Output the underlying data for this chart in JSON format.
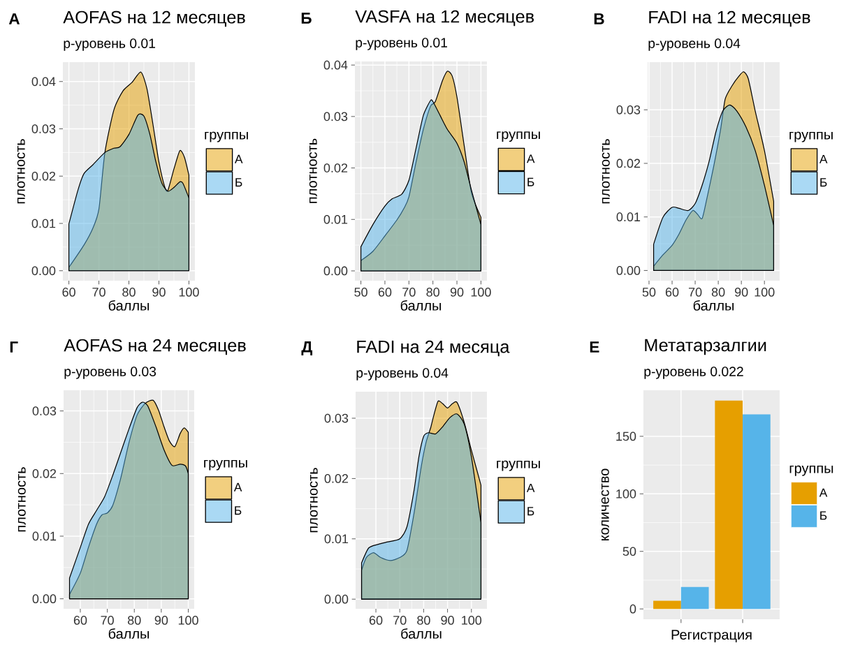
{
  "chart_data": [
    {
      "type": "area",
      "title": "AOFAS на 12 месяцев",
      "subtitle": "p-уровень 0.01",
      "annotations": [
        "А"
      ],
      "xlabel": "баллы",
      "ylabel": "плотность",
      "legend_title": "группы",
      "legend": "right",
      "grid": true,
      "xlim": [
        58,
        102
      ],
      "ylim": [
        -0.0021,
        0.0441
      ],
      "xticks": [
        60,
        70,
        80,
        90,
        100
      ],
      "yticks": [
        {
          "value": 0,
          "label": "0.00"
        },
        {
          "value": 0.01,
          "label": "0.01"
        },
        {
          "value": 0.02,
          "label": "0.02"
        },
        {
          "value": 0.03,
          "label": "0.03"
        },
        {
          "value": 0.04,
          "label": "0.04"
        }
      ],
      "series": [
        {
          "name": "А",
          "color": "#e69f00",
          "x": [
            60,
            65,
            68,
            70,
            72,
            75,
            78,
            81,
            84,
            86,
            88,
            90,
            92,
            93,
            95,
            97,
            98.5,
            100
          ],
          "values": [
            0.0007,
            0.0054,
            0.009,
            0.013,
            0.025,
            0.034,
            0.038,
            0.0398,
            0.042,
            0.0385,
            0.031,
            0.023,
            0.0176,
            0.017,
            0.0215,
            0.0254,
            0.024,
            0.0202
          ]
        },
        {
          "name": "Б",
          "color": "#56b4e9",
          "x": [
            60,
            63,
            65,
            68,
            72,
            75,
            77,
            80,
            83,
            85,
            87,
            89,
            91,
            93,
            95,
            97,
            98,
            100
          ],
          "values": [
            0.0099,
            0.017,
            0.0205,
            0.0224,
            0.025,
            0.0259,
            0.0262,
            0.0288,
            0.0329,
            0.0327,
            0.0288,
            0.023,
            0.0185,
            0.0168,
            0.0176,
            0.0188,
            0.0185,
            0.0154
          ]
        }
      ]
    },
    {
      "type": "area",
      "title": "VASFA на 12 месяцев",
      "subtitle": "p-уровень 0.01",
      "annotations": [
        "Б"
      ],
      "xlabel": "баллы",
      "ylabel": "плотность",
      "legend_title": "группы",
      "legend": "right",
      "grid": true,
      "xlim": [
        47.5,
        102.5
      ],
      "ylim": [
        -0.0019,
        0.0407
      ],
      "xticks": [
        50,
        60,
        70,
        80,
        90,
        100
      ],
      "yticks": [
        {
          "value": 0,
          "label": "0.00"
        },
        {
          "value": 0.01,
          "label": "0.01"
        },
        {
          "value": 0.02,
          "label": "0.02"
        },
        {
          "value": 0.03,
          "label": "0.03"
        },
        {
          "value": 0.04,
          "label": "0.04"
        }
      ],
      "series": [
        {
          "name": "А",
          "color": "#e69f00",
          "x": [
            50,
            55,
            60,
            65,
            68,
            70,
            73,
            76,
            79,
            81,
            84,
            86,
            88,
            90,
            93,
            96,
            100
          ],
          "values": [
            0.002,
            0.0038,
            0.0068,
            0.0099,
            0.0122,
            0.0144,
            0.0212,
            0.0275,
            0.032,
            0.0329,
            0.037,
            0.0388,
            0.0379,
            0.0338,
            0.0244,
            0.0153,
            0.0104
          ]
        },
        {
          "name": "Б",
          "color": "#56b4e9",
          "x": [
            50,
            55,
            60,
            63,
            67,
            70,
            73,
            76,
            79,
            80,
            83,
            86,
            90,
            93,
            96,
            100
          ],
          "values": [
            0.0047,
            0.009,
            0.0126,
            0.014,
            0.0149,
            0.0176,
            0.0239,
            0.0302,
            0.0331,
            0.0329,
            0.0302,
            0.0275,
            0.0248,
            0.0212,
            0.0158,
            0.009
          ]
        }
      ]
    },
    {
      "type": "area",
      "title": "FADI на 12 месяцев",
      "subtitle": "p-уровень 0.04",
      "annotations": [
        "В"
      ],
      "xlabel": "баллы",
      "ylabel": "плотность",
      "legend_title": "группы",
      "legend": "right",
      "grid": true,
      "xlim": [
        49.4,
        106.6
      ],
      "ylim": [
        -0.0019,
        0.0389
      ],
      "xticks": [
        50,
        60,
        70,
        80,
        90,
        100
      ],
      "yticks": [
        {
          "value": 0,
          "label": "0.00"
        },
        {
          "value": 0.01,
          "label": "0.01"
        },
        {
          "value": 0.02,
          "label": "0.02"
        },
        {
          "value": 0.03,
          "label": "0.03"
        }
      ],
      "series": [
        {
          "name": "А",
          "color": "#e69f00",
          "x": [
            52,
            56,
            60,
            63,
            66,
            69,
            71,
            73,
            75,
            78,
            81,
            83,
            86,
            89,
            91,
            93,
            96,
            100,
            104
          ],
          "values": [
            0.0008,
            0.0029,
            0.0047,
            0.0068,
            0.0094,
            0.0112,
            0.0105,
            0.0097,
            0.0133,
            0.0194,
            0.0263,
            0.032,
            0.0345,
            0.0363,
            0.0371,
            0.0358,
            0.0298,
            0.0224,
            0.0129
          ]
        },
        {
          "name": "Б",
          "color": "#56b4e9",
          "x": [
            52,
            56,
            60,
            63,
            67,
            70,
            73,
            76,
            79,
            82,
            85,
            88,
            92,
            96,
            100,
            104
          ],
          "values": [
            0.0049,
            0.0099,
            0.0118,
            0.0116,
            0.0112,
            0.0125,
            0.0159,
            0.0203,
            0.0259,
            0.0298,
            0.0309,
            0.0298,
            0.0268,
            0.0224,
            0.0159,
            0.0084
          ]
        }
      ]
    },
    {
      "type": "area",
      "title": "AOFAS на 24 месяцев",
      "subtitle": "p-уровень 0.03",
      "annotations": [
        "Г"
      ],
      "xlabel": "баллы",
      "ylabel": "плотность",
      "legend_title": "группы",
      "legend": "right",
      "grid": true,
      "xlim": [
        53.8,
        102.2
      ],
      "ylim": [
        -0.0016,
        0.0333
      ],
      "xticks": [
        60,
        70,
        80,
        90,
        100
      ],
      "yticks": [
        {
          "value": 0,
          "label": "0.00"
        },
        {
          "value": 0.01,
          "label": "0.01"
        },
        {
          "value": 0.02,
          "label": "0.02"
        },
        {
          "value": 0.03,
          "label": "0.03"
        }
      ],
      "series": [
        {
          "name": "А",
          "color": "#e69f00",
          "x": [
            56,
            60,
            63,
            66,
            68,
            70,
            72,
            75,
            78,
            81,
            84,
            87,
            89,
            91,
            93,
            95,
            97,
            98.5,
            100
          ],
          "values": [
            0.0007,
            0.0041,
            0.0082,
            0.0119,
            0.0134,
            0.0137,
            0.0149,
            0.0193,
            0.0249,
            0.0293,
            0.0312,
            0.0317,
            0.0301,
            0.0275,
            0.0252,
            0.0243,
            0.0264,
            0.0273,
            0.0266
          ]
        },
        {
          "name": "Б",
          "color": "#56b4e9",
          "x": [
            56,
            60,
            63,
            66,
            69,
            72,
            75,
            78,
            81,
            83,
            85,
            88,
            91,
            94,
            97,
            99,
            100
          ],
          "values": [
            0.0033,
            0.0082,
            0.0119,
            0.0141,
            0.0163,
            0.0197,
            0.0234,
            0.0271,
            0.0305,
            0.0314,
            0.0308,
            0.0275,
            0.0238,
            0.0213,
            0.0215,
            0.0212,
            0.02
          ]
        }
      ]
    },
    {
      "type": "area",
      "title": "FADI на 24 месяца",
      "subtitle": "p-уровень 0.04",
      "annotations": [
        "Д"
      ],
      "xlabel": "баллы",
      "ylabel": "плотность",
      "legend_title": "группы",
      "legend": "right",
      "grid": true,
      "xlim": [
        51.5,
        106.5
      ],
      "ylim": [
        -0.0016,
        0.0344
      ],
      "xticks": [
        60,
        70,
        80,
        90,
        100
      ],
      "yticks": [
        {
          "value": 0,
          "label": "0.00"
        },
        {
          "value": 0.01,
          "label": "0.01"
        },
        {
          "value": 0.02,
          "label": "0.02"
        },
        {
          "value": 0.03,
          "label": "0.03"
        }
      ],
      "series": [
        {
          "name": "А",
          "color": "#e69f00",
          "x": [
            54,
            56,
            59,
            62,
            66,
            70,
            73,
            76,
            79,
            81,
            83,
            84,
            86,
            88,
            90,
            92,
            94,
            97,
            100,
            104
          ],
          "values": [
            0.0048,
            0.0069,
            0.0077,
            0.0069,
            0.0064,
            0.0069,
            0.0081,
            0.0143,
            0.022,
            0.026,
            0.0285,
            0.0301,
            0.0328,
            0.0324,
            0.0317,
            0.0324,
            0.0326,
            0.0293,
            0.0247,
            0.0189
          ]
        },
        {
          "name": "Б",
          "color": "#56b4e9",
          "x": [
            54,
            57,
            61,
            65,
            70,
            73,
            76,
            78,
            80,
            82,
            85,
            88,
            91,
            94,
            97,
            100,
            104
          ],
          "values": [
            0.006,
            0.0085,
            0.0091,
            0.0095,
            0.01,
            0.012,
            0.0181,
            0.0236,
            0.027,
            0.0276,
            0.0274,
            0.0286,
            0.0301,
            0.0307,
            0.029,
            0.0236,
            0.0127
          ]
        }
      ]
    },
    {
      "type": "bar",
      "title": "Метатарзалгии",
      "subtitle": "p-уровень 0.022",
      "annotations": [
        "Е"
      ],
      "xlabel": "Регистрация",
      "ylabel": "количество",
      "legend_title": "группы",
      "legend": "right",
      "grid": true,
      "categories": [
        null,
        null
      ],
      "ylim": [
        -9,
        190
      ],
      "yticks": [
        0,
        50,
        100,
        150
      ],
      "series": [
        {
          "name": "А",
          "color": "#e69f00",
          "values": [
            7,
            181
          ]
        },
        {
          "name": "Б",
          "color": "#56b4e9",
          "values": [
            19,
            169
          ]
        }
      ]
    }
  ]
}
